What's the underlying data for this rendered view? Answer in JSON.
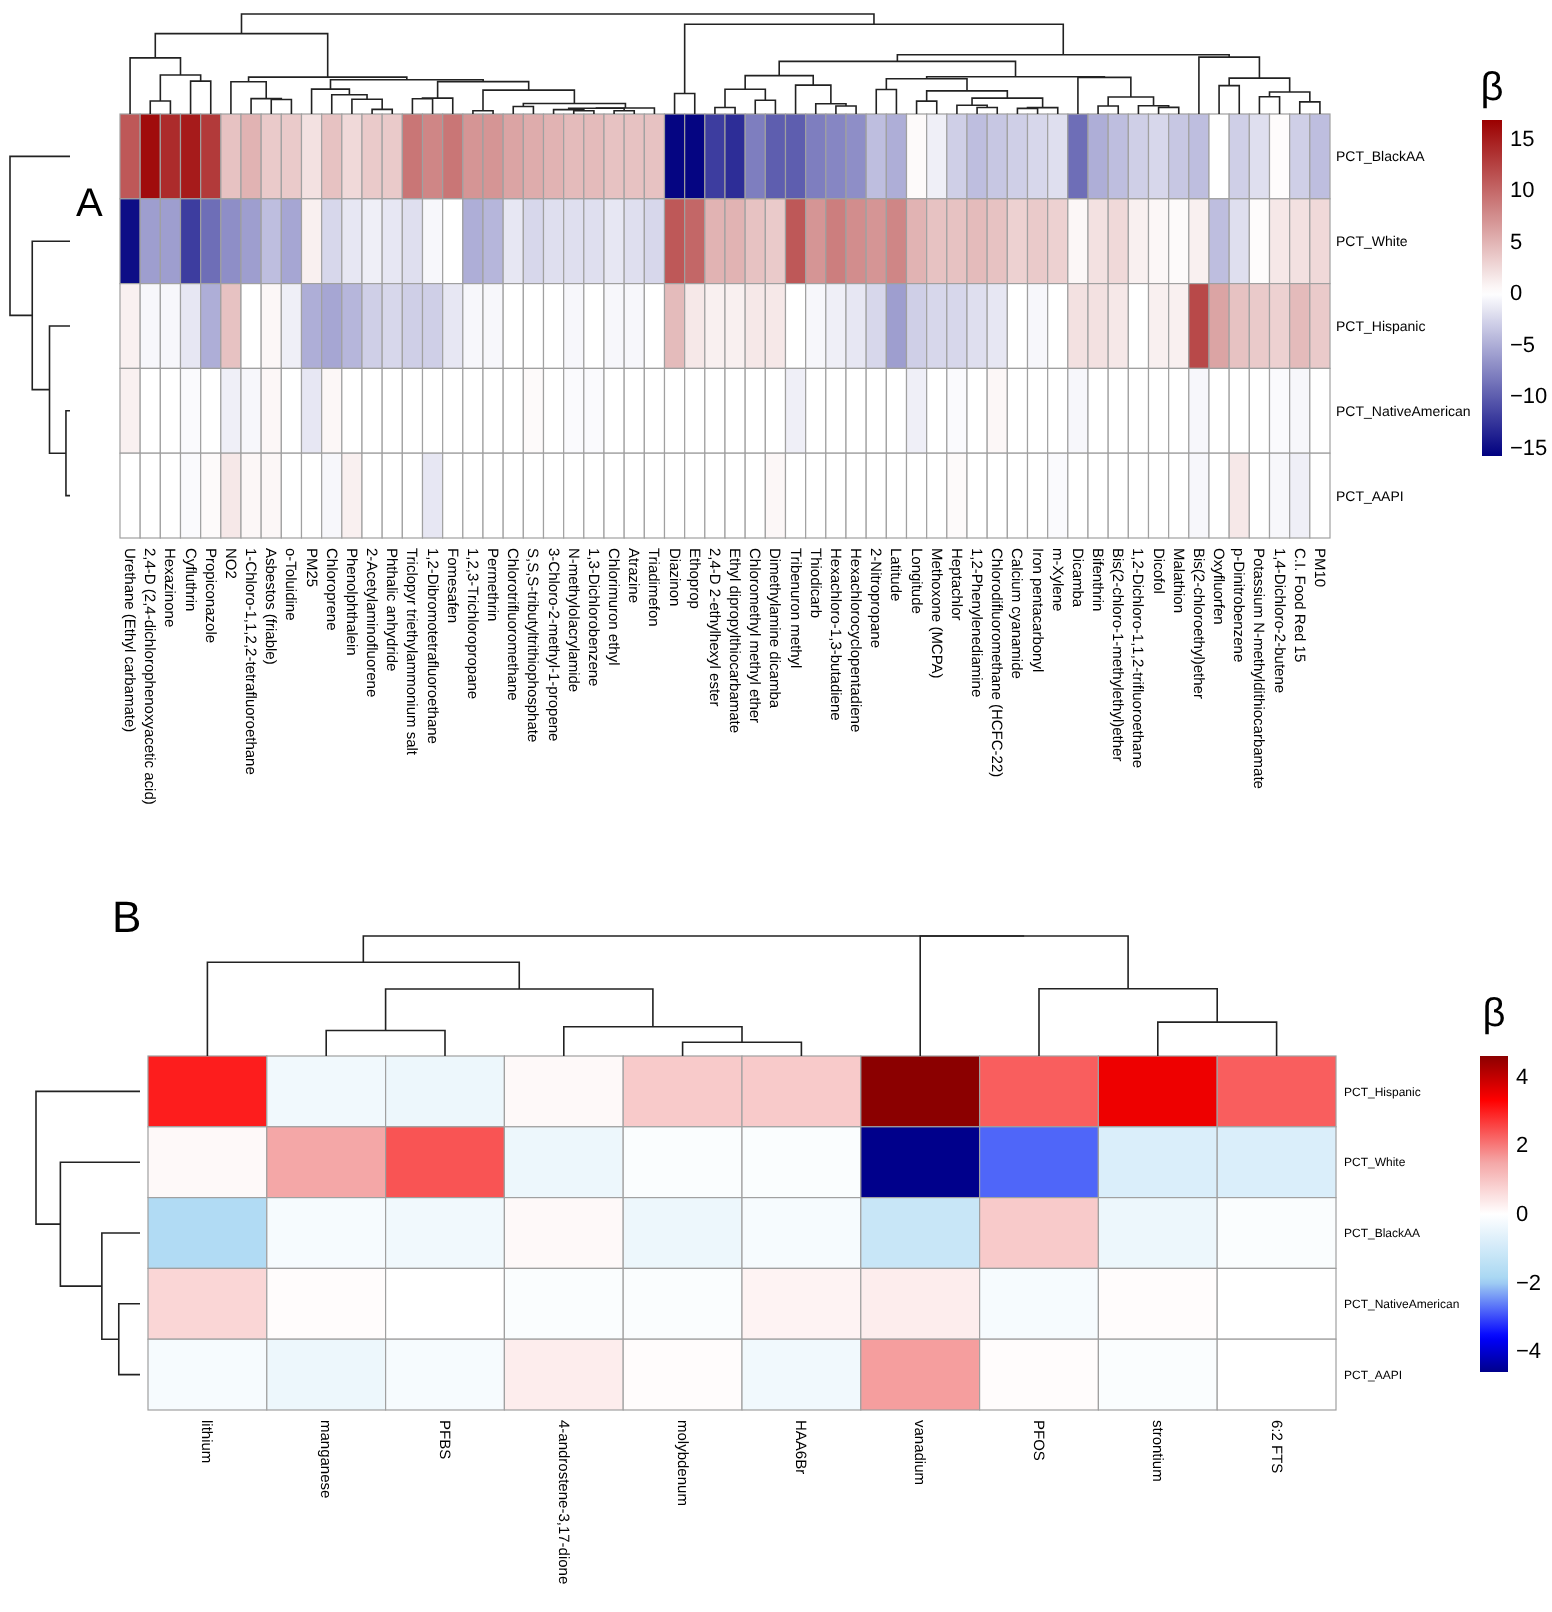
{
  "chart_data": [
    {
      "type": "heatmap",
      "title": "A",
      "clabel": "β",
      "categories": [
        "Urethane (Ethyl carbamate)",
        "2,4-D (2,4-dichlorophenoxyacetic acid)",
        "Hexazinone",
        "Cyfluthrin",
        "Propiconazole",
        "NO2",
        "1-Chloro-1,1,2,2-tetrafluoroethane",
        "Asbestos (friable)",
        "o-Toluidine",
        "PM25",
        "Chloroprene",
        "Phenolphthalein",
        "2-Acetylaminofluorene",
        "Phthalic anhydride",
        "Triclopyr triethylammonium salt",
        "1,2-Dibromotetrafluoroethane",
        "Fomesafen",
        "1,2,3-Trichloropropane",
        "Permethrin",
        "Chlorotrifluoromethane",
        "S,S,S-tributyltrithiophosphate",
        "3-Chloro-2-methyl-1-propene",
        "N-methylolacrylamide",
        "1,3-Dichlorobenzene",
        "Chlorimuron ethyl",
        "Atrazine",
        "Triadimefon",
        "Diazinon",
        "Ethoprop",
        "2,4-D 2-ethylhexyl ester",
        "Ethyl dipropylthiocarbamate",
        "Chloromethyl methyl ether",
        "Dimethylamine dicamba",
        "Tribenuron methyl",
        "Thiodicarb",
        "Hexachloro-1,3-butadiene",
        "Hexachlorocyclopentadiene",
        "2-Nitropropane",
        "Latitude",
        "Longitude",
        "Methoxone (MCPA)",
        "Heptachlor",
        "1,2-Phenylenediamine",
        "Chlorodifluoromethane (HCFC-22)",
        "Calcium cyanamide",
        "Iron pentacarbonyl",
        "m-Xylene",
        "Dicamba",
        "Bifenthrin",
        "Bis(2-chloro-1-methylethyl)ether",
        "1,2-Dichloro-1,1,2-trifluoroethane",
        "Dicofol",
        "Malathion",
        "Bis(2-chloroethyl)ether",
        "Oxyfluorfen",
        "p-Dinitrobenzene",
        "Potassium N-methyldithiocarbamate",
        "1,4-Dichloro-2-butene",
        "C.I. Food Red 15",
        "PM10"
      ],
      "y_categories": [
        "PCT_BlackAA",
        "PCT_White",
        "PCT_Hispanic",
        "PCT_NativeAmerican",
        "PCT_AAPI"
      ],
      "cells": [
        [
          11,
          16,
          14,
          15,
          13,
          4,
          5,
          3.5,
          3.5,
          2,
          4,
          2.5,
          3.5,
          3.5,
          9,
          8,
          9,
          7,
          7,
          6,
          5.5,
          5,
          4.5,
          4.5,
          4,
          4,
          4,
          -15.5,
          -15.5,
          -12,
          -13,
          -8,
          -10,
          -10,
          -8,
          -7.5,
          -7,
          -4,
          -5,
          0.3,
          -1,
          -3,
          -4,
          -3.5,
          -3,
          -2.5,
          -2,
          -9,
          -5,
          -4,
          -3,
          -2.5,
          -3.5,
          -4,
          0,
          -3,
          -2,
          0.2,
          -3,
          -4
        ],
        [
          -15,
          -6,
          -6,
          -12,
          -9,
          -7,
          -6,
          -4,
          -5.5,
          1,
          -2.5,
          -1.5,
          -1,
          -1.5,
          -2,
          -0.5,
          0,
          -5,
          -4.5,
          -1.5,
          -2.5,
          -2,
          -2,
          -2,
          -1.5,
          -2,
          -2.5,
          11,
          10,
          5,
          5,
          4,
          3.5,
          11,
          7,
          8.5,
          7.5,
          7,
          8,
          5,
          4,
          4,
          4.5,
          4,
          3,
          3.5,
          3,
          0.5,
          2,
          2.5,
          1,
          0.5,
          0.3,
          1,
          -4,
          -2,
          0.2,
          1.5,
          2,
          2.5
        ],
        [
          1,
          -0.5,
          -0.5,
          -1.5,
          -5,
          4,
          0,
          0.5,
          -1,
          -5,
          -5.5,
          -4.5,
          -3,
          -2.5,
          -3,
          -3,
          -1.5,
          -0.5,
          -0.5,
          0,
          0,
          0,
          -0.5,
          0,
          -0.5,
          -0.5,
          0,
          4.5,
          1.5,
          1,
          1,
          1.5,
          1.5,
          0,
          -0.5,
          -1,
          -1.5,
          -2.5,
          -6,
          -3,
          -2.5,
          -2.5,
          -2,
          -1.5,
          0,
          -0.5,
          0,
          2,
          2,
          1.5,
          0,
          1,
          1,
          12,
          6,
          4,
          3.5,
          3,
          4.5,
          3.5
        ],
        [
          1,
          0,
          0,
          -0.3,
          0,
          -1,
          -0.5,
          0.5,
          0,
          -1.5,
          0.5,
          0,
          0,
          0,
          0,
          0,
          0,
          0,
          0,
          0,
          0.3,
          0,
          -0.3,
          -0.3,
          0,
          0,
          0,
          0,
          0,
          0,
          0,
          0,
          0,
          -1,
          0,
          0,
          0,
          0,
          0,
          -1,
          0,
          -0.3,
          0,
          0.5,
          0,
          0,
          0,
          -0.5,
          0,
          0,
          0,
          0,
          0,
          -0.5,
          0,
          0,
          0,
          -0.3,
          -0.5,
          0
        ],
        [
          0,
          0,
          0,
          -0.3,
          0.3,
          1.5,
          0.5,
          0.5,
          0,
          0,
          -0.5,
          1,
          0,
          0,
          0,
          -1.5,
          0,
          0,
          0,
          0,
          0,
          0,
          0,
          0,
          0,
          0,
          0,
          0,
          0,
          0,
          0,
          0,
          0.5,
          0,
          0,
          0,
          0,
          0,
          0,
          0,
          0,
          0.3,
          0,
          0,
          0,
          0,
          -0.3,
          0,
          0,
          0,
          0,
          0,
          0,
          -0.5,
          0,
          1.5,
          0,
          -0.5,
          -1,
          0
        ]
      ],
      "clim": [
        -15.8,
        16.8
      ],
      "cticks": [
        -15,
        -10,
        -5,
        0,
        5,
        10,
        15
      ]
    },
    {
      "type": "heatmap",
      "title": "B",
      "clabel": "β",
      "categories": [
        "lithium",
        "manganese",
        "PFBS",
        "4-androstene-3,17-dione",
        "molybdenum",
        "HAA6Br",
        "vanadium",
        "PFOS",
        "strontium",
        "6:2 FTS"
      ],
      "y_categories": [
        "PCT_Hispanic",
        "PCT_White",
        "PCT_BlackAA",
        "PCT_NativeAmerican",
        "PCT_AAPI"
      ],
      "cells": [
        [
          3.0,
          -0.3,
          -0.4,
          0.1,
          0.9,
          0.9,
          4.6,
          2.3,
          3.5,
          2.3
        ],
        [
          0.1,
          1.5,
          2.4,
          -0.4,
          -0.1,
          -0.1,
          -4.6,
          -2.8,
          -0.8,
          -0.8
        ],
        [
          -1.7,
          -0.2,
          -0.3,
          0.1,
          -0.4,
          -0.2,
          -1.2,
          0.9,
          -0.4,
          -0.1
        ],
        [
          0.7,
          0.05,
          0,
          -0.1,
          -0.1,
          0.2,
          0.3,
          -0.2,
          0.05,
          0
        ],
        [
          -0.2,
          -0.4,
          -0.2,
          0.3,
          0.05,
          -0.3,
          1.6,
          0.05,
          -0.1,
          0
        ]
      ],
      "clim": [
        -4.6,
        4.6
      ],
      "cticks": [
        -4,
        -2,
        0,
        2,
        4
      ]
    }
  ]
}
